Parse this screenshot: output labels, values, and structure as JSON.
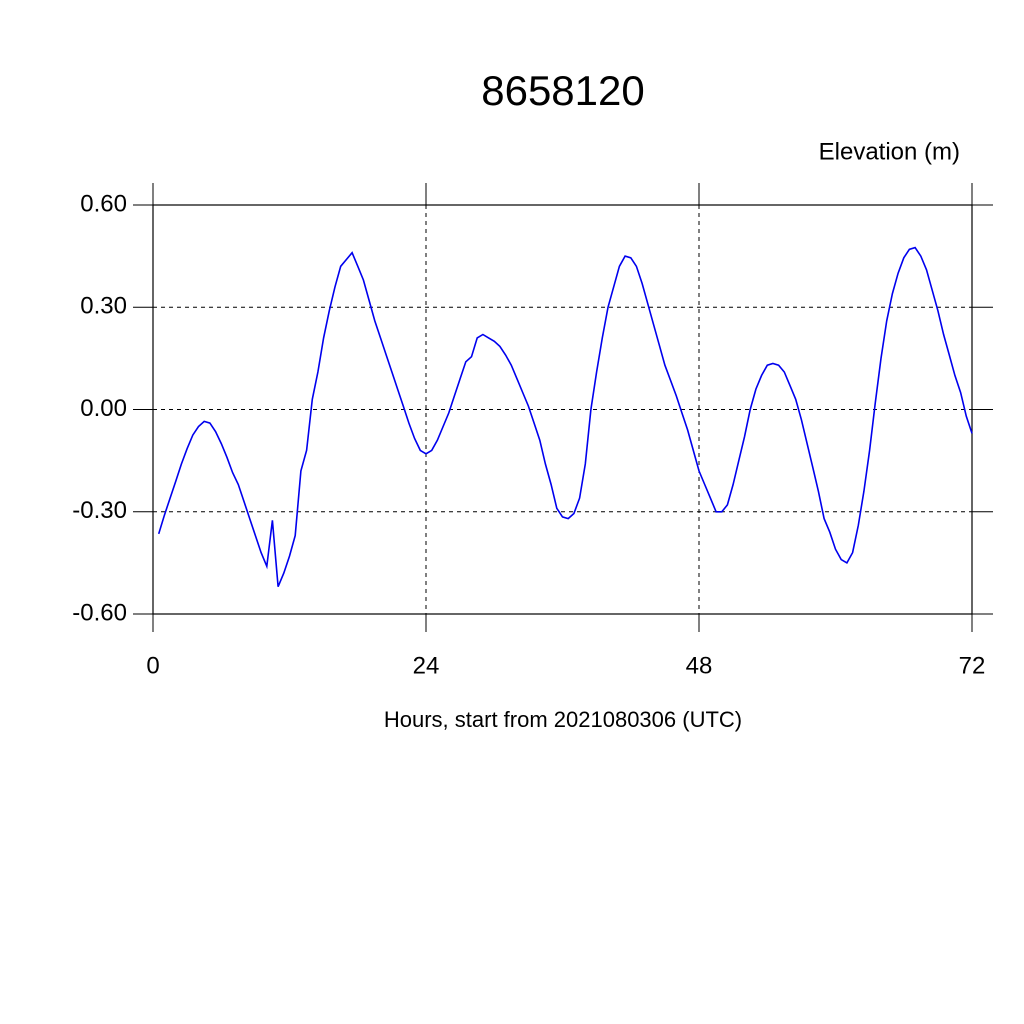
{
  "chart_data": {
    "type": "line",
    "title": "8658120",
    "y_label": "Elevation (m)",
    "x_label": "Hours, start from 2021080306 (UTC)",
    "x": [
      0.5,
      1,
      1.5,
      2,
      2.5,
      3,
      3.5,
      4,
      4.5,
      5,
      5.5,
      6,
      6.5,
      7,
      7.5,
      8,
      8.5,
      9,
      9.5,
      10,
      10.5,
      11,
      11.5,
      12,
      12.5,
      13,
      13.5,
      14,
      14.5,
      15,
      15.5,
      16,
      16.5,
      17,
      17.5,
      18,
      18.5,
      19,
      19.5,
      20,
      20.5,
      21,
      21.5,
      22,
      22.5,
      23,
      23.5,
      24,
      24.5,
      25,
      25.5,
      26,
      26.5,
      27,
      27.5,
      28,
      28.5,
      29,
      29.5,
      30,
      30.5,
      31,
      31.5,
      32,
      32.5,
      33,
      33.5,
      34,
      34.5,
      35,
      35.5,
      36,
      36.5,
      37,
      37.5,
      38,
      38.5,
      39,
      39.5,
      40,
      40.5,
      41,
      41.5,
      42,
      42.5,
      43,
      43.5,
      44,
      44.5,
      45,
      45.5,
      46,
      46.5,
      47,
      47.5,
      48,
      48.5,
      49,
      49.5,
      50,
      50.5,
      51,
      51.5,
      52,
      52.5,
      53,
      53.5,
      54,
      54.5,
      55,
      55.5,
      56,
      56.5,
      57,
      57.5,
      58,
      58.5,
      59,
      59.5,
      60,
      60.5,
      61,
      61.5,
      62,
      62.5,
      63,
      63.5,
      64,
      64.5,
      65,
      65.5,
      66,
      66.5,
      67,
      67.5,
      68,
      68.5,
      69,
      69.5,
      70,
      70.5,
      71,
      71.5,
      72
    ],
    "series": [
      {
        "name": "Elevation",
        "color": "#0000ee",
        "values": [
          -0.365,
          -0.31,
          -0.26,
          -0.21,
          -0.16,
          -0.115,
          -0.075,
          -0.05,
          -0.035,
          -0.04,
          -0.065,
          -0.1,
          -0.14,
          -0.185,
          -0.22,
          -0.27,
          -0.32,
          -0.37,
          -0.42,
          -0.46,
          -0.325,
          -0.52,
          -0.48,
          -0.43,
          -0.37,
          -0.18,
          -0.12,
          0.03,
          0.11,
          0.21,
          0.29,
          0.36,
          0.42,
          0.44,
          0.46,
          0.42,
          0.38,
          0.32,
          0.26,
          0.21,
          0.16,
          0.11,
          0.06,
          0.01,
          -0.04,
          -0.085,
          -0.12,
          -0.13,
          -0.12,
          -0.09,
          -0.05,
          -0.01,
          0.04,
          0.09,
          0.14,
          0.155,
          0.21,
          0.22,
          0.21,
          0.2,
          0.185,
          0.16,
          0.13,
          0.09,
          0.05,
          0.01,
          -0.04,
          -0.09,
          -0.16,
          -0.22,
          -0.29,
          -0.315,
          -0.32,
          -0.305,
          -0.26,
          -0.16,
          0.0,
          0.11,
          0.21,
          0.3,
          0.36,
          0.42,
          0.45,
          0.445,
          0.42,
          0.37,
          0.31,
          0.25,
          0.19,
          0.13,
          0.085,
          0.04,
          -0.01,
          -0.06,
          -0.12,
          -0.18,
          -0.22,
          -0.26,
          -0.3,
          -0.3,
          -0.28,
          -0.22,
          -0.15,
          -0.08,
          0.0,
          0.06,
          0.1,
          0.13,
          0.135,
          0.13,
          0.11,
          0.07,
          0.03,
          -0.03,
          -0.1,
          -0.17,
          -0.24,
          -0.32,
          -0.36,
          -0.41,
          -0.44,
          -0.45,
          -0.42,
          -0.34,
          -0.24,
          -0.12,
          0.02,
          0.15,
          0.26,
          0.34,
          0.4,
          0.445,
          0.47,
          0.475,
          0.45,
          0.41,
          0.35,
          0.29,
          0.22,
          0.16,
          0.1,
          0.05,
          -0.02,
          -0.07
        ]
      }
    ],
    "xlim": [
      0,
      72
    ],
    "xticks": [
      0,
      24,
      48,
      72
    ],
    "ylim": [
      -0.6,
      0.6
    ],
    "yticks": [
      {
        "value": -0.6,
        "label": "-0.60"
      },
      {
        "value": -0.3,
        "label": "-0.30"
      },
      {
        "value": 0,
        "label": "0.00"
      },
      {
        "value": 0.3,
        "label": "0.30"
      },
      {
        "value": 0.6,
        "label": "0.60"
      }
    ],
    "grid": true
  }
}
